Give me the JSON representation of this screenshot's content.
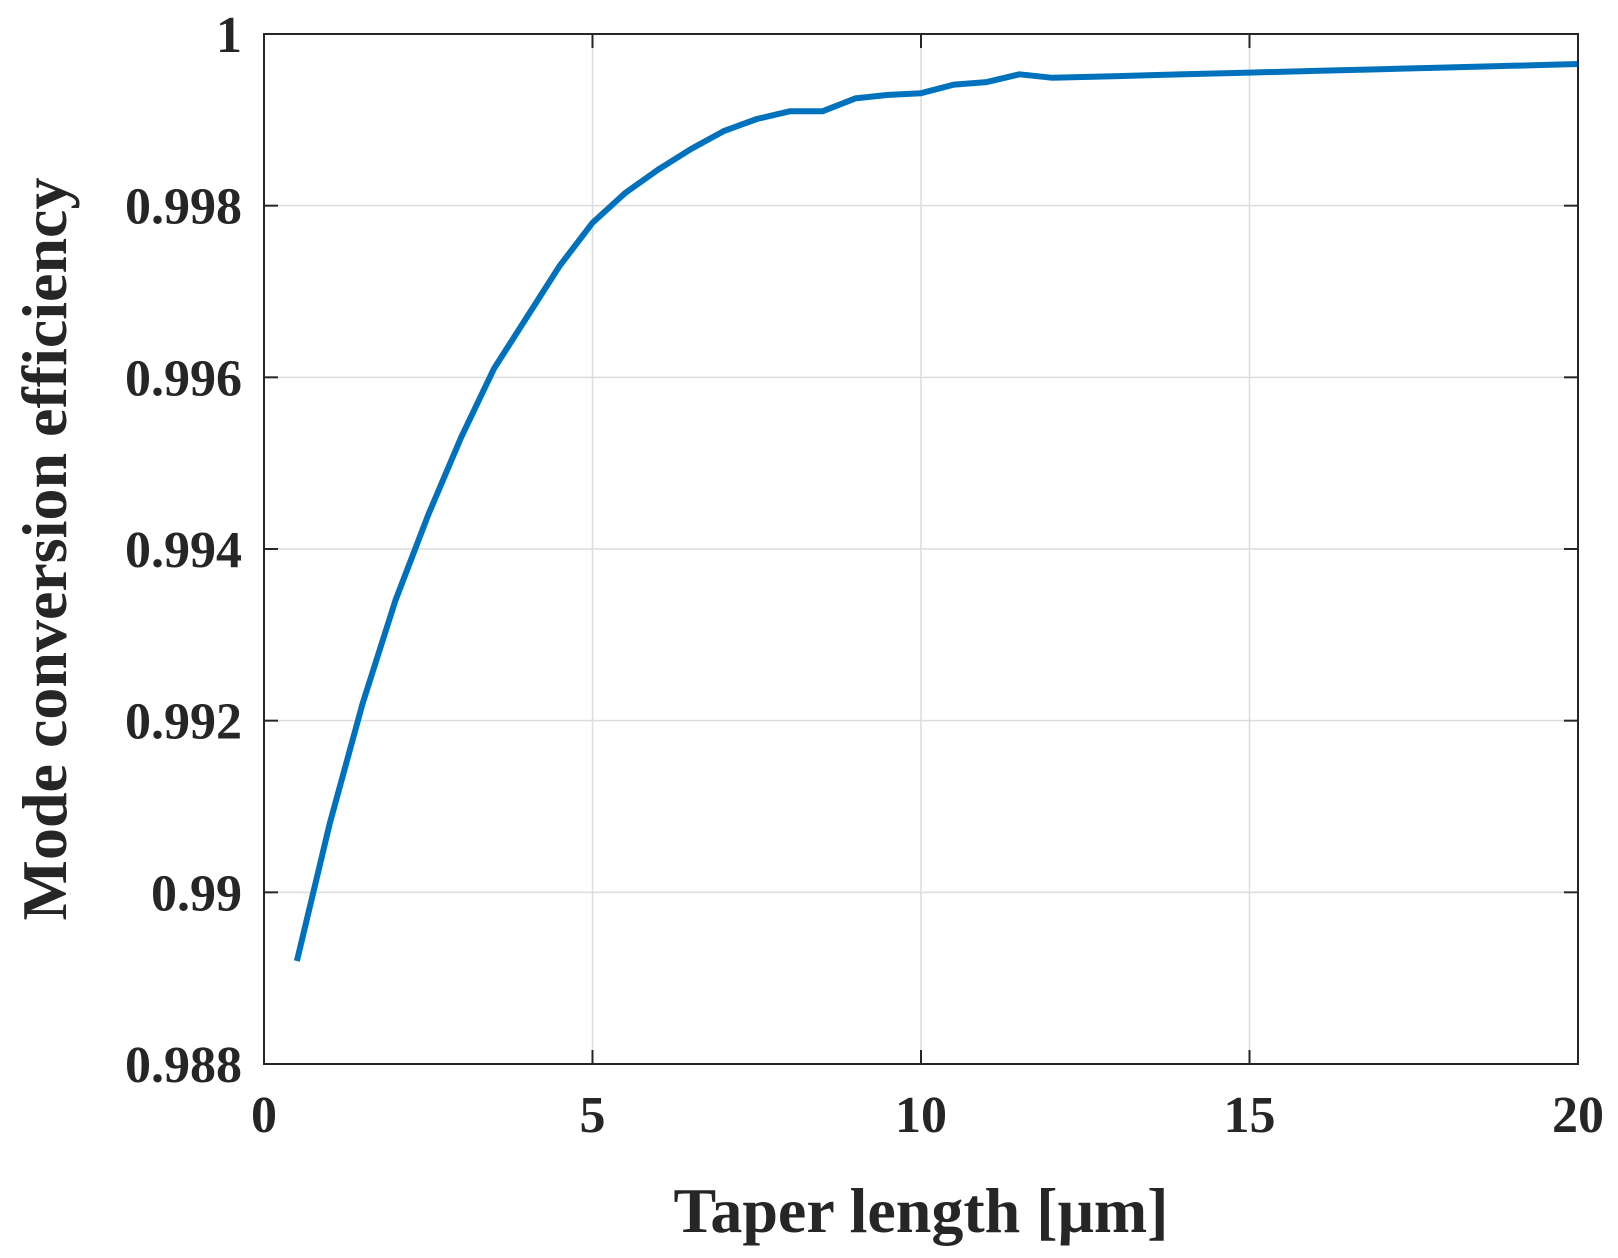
{
  "chart_data": {
    "type": "line",
    "xlabel": "Taper length [μm]",
    "ylabel": "Mode conversion efficiency",
    "xlim": [
      0,
      20
    ],
    "ylim": [
      0.988,
      1
    ],
    "xticks": [
      0,
      5,
      10,
      15,
      20
    ],
    "xtick_labels": [
      "0",
      "5",
      "10",
      "15",
      "20"
    ],
    "yticks": [
      0.988,
      0.99,
      0.992,
      0.994,
      0.996,
      0.998,
      1
    ],
    "ytick_labels": [
      "0.988",
      "0.99",
      "0.992",
      "0.994",
      "0.996",
      "0.998",
      "1"
    ],
    "grid": true,
    "legend": "none",
    "series": [
      {
        "color": "#0072BD",
        "x": [
          0.5,
          1,
          1.5,
          2,
          2.5,
          3,
          3.5,
          4,
          4.5,
          5,
          5.5,
          6,
          6.5,
          7,
          7.5,
          8,
          8.5,
          9,
          9.5,
          10,
          10.5,
          11,
          11.5,
          12,
          13,
          14,
          15,
          16,
          17,
          18,
          19,
          20
        ],
        "y": [
          0.9892,
          0.9908,
          0.9922,
          0.9934,
          0.9944,
          0.9953,
          0.9961,
          0.9967,
          0.9973,
          0.9978,
          0.99815,
          0.99842,
          0.99866,
          0.99887,
          0.99901,
          0.9991,
          0.9991,
          0.99925,
          0.99929,
          0.99931,
          0.99941,
          0.99944,
          0.99953,
          0.99949,
          0.99951,
          0.99953,
          0.99955,
          0.99957,
          0.99959,
          0.99961,
          0.99963,
          0.99965
        ]
      }
    ]
  }
}
